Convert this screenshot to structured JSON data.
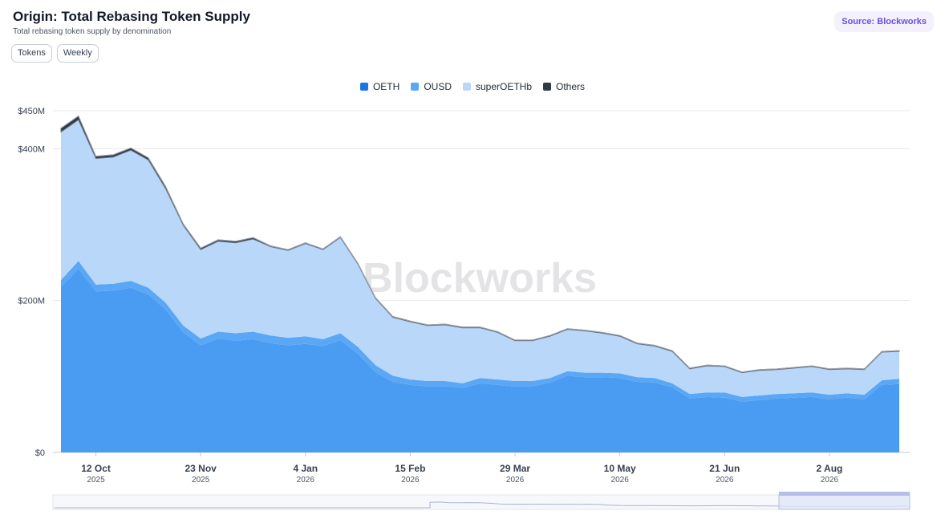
{
  "header": {
    "title": "Origin: Total Rebasing Token Supply",
    "subtitle": "Total rebasing token supply by denomination",
    "source": "Source: Blockworks"
  },
  "toggles": {
    "tokens": "Tokens",
    "weekly": "Weekly"
  },
  "watermark": "Blockworks",
  "colors": {
    "OETH": "#1a73e8",
    "OUSD": "#5aa7f5",
    "superOETHb": "#b9d7f8",
    "Others": "#2f3a44",
    "grid": "#e8e8ec",
    "navigator": "#dfe6f8"
  },
  "chart_data": {
    "type": "area",
    "stacked": true,
    "x_axis_ticks": [
      {
        "label": "12 Oct",
        "year": "2025"
      },
      {
        "label": "23 Nov",
        "year": "2025"
      },
      {
        "label": "4 Jan",
        "year": "2026"
      },
      {
        "label": "15 Feb",
        "year": "2026"
      },
      {
        "label": "29 Mar",
        "year": "2026"
      },
      {
        "label": "10 May",
        "year": "2026"
      },
      {
        "label": "21 Jun",
        "year": "2026"
      },
      {
        "label": "2 Aug",
        "year": "2026"
      }
    ],
    "y_axis_ticks": [
      "$0",
      "$200M",
      "$400M",
      "$450M"
    ],
    "y_tick_values": [
      0,
      200,
      400,
      450
    ],
    "ylim": [
      0,
      450
    ],
    "units": "$M",
    "x": [
      "2025-09-28",
      "2025-10-05",
      "2025-10-12",
      "2025-10-19",
      "2025-10-26",
      "2025-11-02",
      "2025-11-09",
      "2025-11-16",
      "2025-11-23",
      "2025-11-30",
      "2025-12-07",
      "2025-12-14",
      "2025-12-21",
      "2025-12-28",
      "2026-01-04",
      "2026-01-11",
      "2026-01-18",
      "2026-01-25",
      "2026-02-01",
      "2026-02-08",
      "2026-02-15",
      "2026-02-22",
      "2026-03-01",
      "2026-03-08",
      "2026-03-15",
      "2026-03-22",
      "2026-03-29",
      "2026-04-05",
      "2026-04-12",
      "2026-04-19",
      "2026-04-26",
      "2026-05-03",
      "2026-05-10",
      "2026-05-17",
      "2026-05-24",
      "2026-05-31",
      "2026-06-07",
      "2026-06-14",
      "2026-06-21",
      "2026-06-28",
      "2026-07-05",
      "2026-07-12",
      "2026-07-19",
      "2026-07-26",
      "2026-08-02",
      "2026-08-09",
      "2026-08-16",
      "2026-08-23",
      "2026-08-30"
    ],
    "series": [
      {
        "name": "OETH",
        "values": [
          218,
          242,
          212,
          213,
          217,
          208,
          188,
          158,
          141,
          150,
          147,
          149,
          144,
          141,
          143,
          140,
          148,
          130,
          106,
          93,
          89,
          87,
          87,
          85,
          91,
          89,
          87,
          87,
          92,
          101,
          99,
          99,
          98,
          93,
          92,
          86,
          71,
          73,
          72,
          67,
          69,
          71,
          72,
          73,
          70,
          72,
          70,
          89,
          90
        ]
      },
      {
        "name": "OUSD",
        "values": [
          9,
          10,
          9,
          9,
          9,
          9,
          9,
          9,
          9,
          9,
          10,
          10,
          10,
          10,
          10,
          9,
          9,
          9,
          9,
          8,
          7,
          7,
          7,
          6,
          7,
          7,
          7,
          7,
          6,
          6,
          6,
          6,
          6,
          6,
          6,
          5,
          6,
          6,
          7,
          6,
          6,
          6,
          6,
          6,
          6,
          6,
          6,
          6,
          7
        ]
      },
      {
        "name": "superOETHb",
        "values": [
          195,
          186,
          166,
          167,
          172,
          168,
          150,
          132,
          117,
          119,
          119,
          122,
          117,
          115,
          122,
          118,
          126,
          109,
          88,
          77,
          76,
          73,
          74,
          73,
          66,
          62,
          53,
          53,
          55,
          55,
          55,
          52,
          49,
          44,
          42,
          42,
          33,
          35,
          34,
          32,
          33,
          32,
          33,
          34,
          33,
          32,
          33,
          37,
          36
        ]
      },
      {
        "name": "Others",
        "values": [
          5,
          5,
          3,
          3,
          3,
          3,
          3,
          2,
          2,
          2,
          2,
          2,
          1,
          1,
          1,
          1,
          1,
          1,
          1,
          1,
          1,
          1,
          1,
          1,
          1,
          1,
          1,
          1,
          1,
          1,
          1,
          1,
          1,
          1,
          1,
          1,
          1,
          1,
          1,
          1,
          1,
          1,
          1,
          1,
          1,
          1,
          1,
          1,
          1
        ]
      }
    ]
  }
}
